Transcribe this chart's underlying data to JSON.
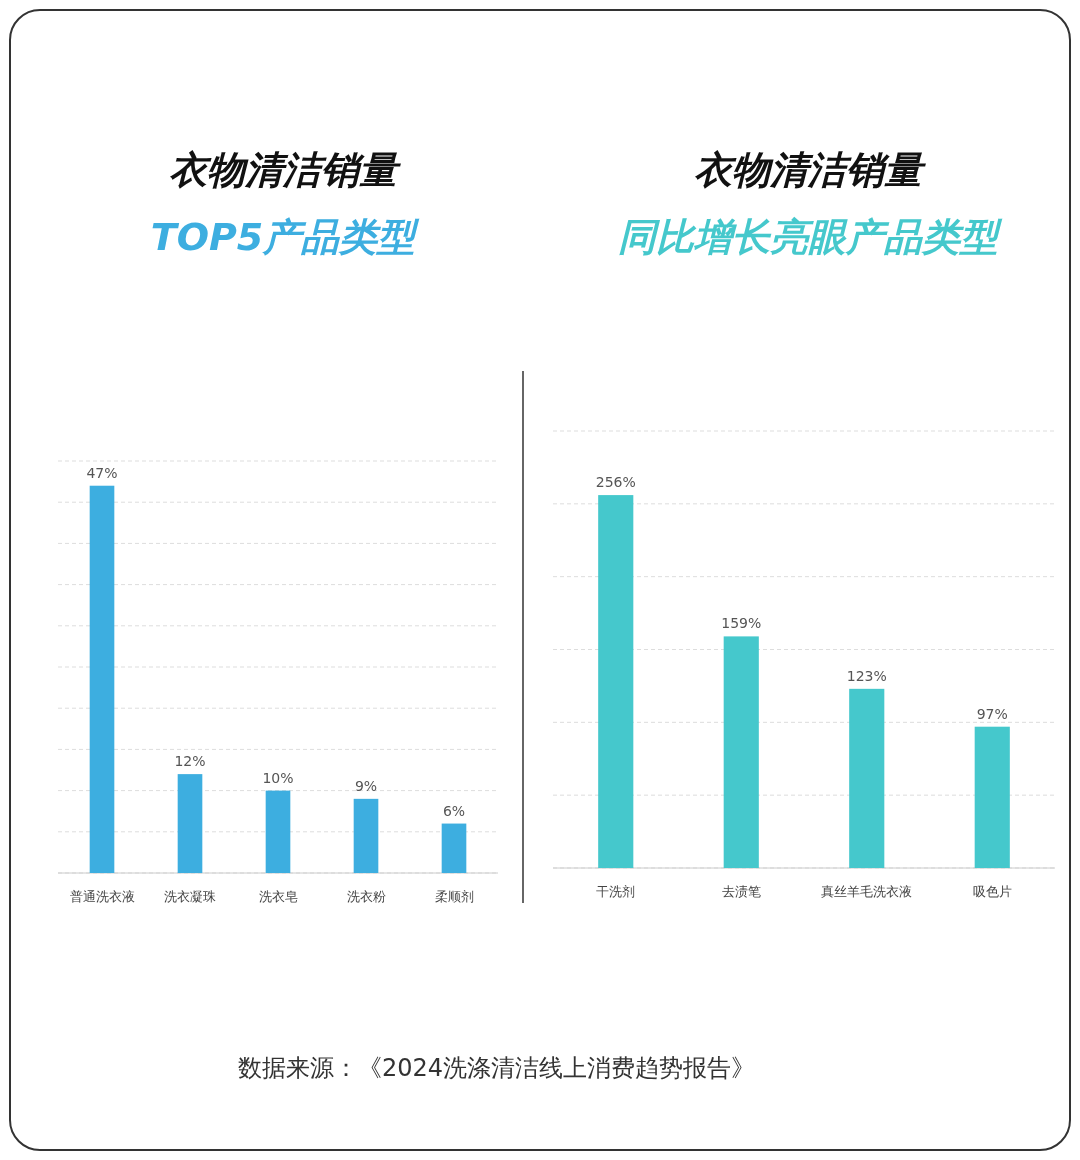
{
  "chart_data": [
    {
      "type": "bar",
      "title": "衣物清洁销量",
      "subtitle": "TOP5产品类型",
      "categories": [
        "普通洗衣液",
        "洗衣凝珠",
        "洗衣皂",
        "洗衣粉",
        "柔顺剂"
      ],
      "values": [
        47,
        12,
        10,
        9,
        6
      ],
      "color": "#3daee0",
      "value_labels": [
        "47%",
        "12%",
        "10%",
        "9%",
        "6%"
      ],
      "ylim": [
        0,
        50
      ],
      "yticks": [
        {
          "value": 0,
          "label": null
        },
        {
          "value": 5,
          "label": null
        },
        {
          "value": 10,
          "label": null
        },
        {
          "value": 15,
          "label": null
        },
        {
          "value": 20,
          "label": null
        },
        {
          "value": 25,
          "label": null
        },
        {
          "value": 30,
          "label": null
        },
        {
          "value": 35,
          "label": null
        },
        {
          "value": 40,
          "label": null
        },
        {
          "value": 45,
          "label": null
        },
        {
          "value": 50,
          "label": null
        }
      ],
      "grid": "y",
      "tick_labels": "x",
      "annotations": [
        "数据来源：《2024洗涤清洁线上消费趋势报告》"
      ]
    },
    {
      "type": "bar",
      "title": "衣物清洁销量",
      "subtitle": "同比增长亮眼产品类型",
      "categories": [
        "干洗剂",
        "去渍笔",
        "真丝羊毛洗衣液",
        "吸色片"
      ],
      "values": [
        256,
        159,
        123,
        97
      ],
      "color": "#45c8cc",
      "value_labels": [
        "256%",
        "159%",
        "123%",
        "97%"
      ],
      "ylim": [
        0,
        300
      ],
      "yticks": [
        {
          "value": 0,
          "label": null
        },
        {
          "value": 50,
          "label": null
        },
        {
          "value": 100,
          "label": null
        },
        {
          "value": 150,
          "label": null
        },
        {
          "value": 200,
          "label": null
        },
        {
          "value": 250,
          "label": null
        },
        {
          "value": 300,
          "label": null
        }
      ],
      "grid": "y",
      "tick_labels": "x"
    }
  ]
}
